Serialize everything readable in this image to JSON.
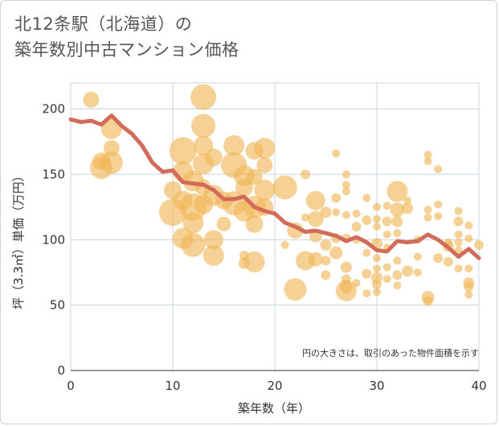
{
  "title_line1": "北12条駅（北海道）の",
  "title_line2": "築年数別中古マンション価格",
  "chart_data": {
    "type": "scatter",
    "xlabel": "築年数（年）",
    "ylabel": "坪（3.3㎡）単価（万円）",
    "xlim": [
      0,
      40
    ],
    "ylim": [
      0,
      220
    ],
    "xticks": [
      "0",
      "10",
      "20",
      "30",
      "40"
    ],
    "yticks": [
      "0",
      "50",
      "100",
      "150",
      "200"
    ],
    "note": "円の大きさは、取引のあった物件面積を示す",
    "colors": {
      "bubble": "#f0b454",
      "line": "#d36b5a",
      "grid": "#c8d4e0"
    },
    "trend": {
      "x": [
        0,
        1,
        2,
        3,
        4,
        5,
        6,
        7,
        8,
        9,
        10,
        11,
        12,
        13,
        14,
        15,
        16,
        17,
        18,
        19,
        20,
        21,
        22,
        23,
        24,
        25,
        26,
        27,
        28,
        29,
        30,
        31,
        32,
        33,
        34,
        35,
        36,
        37,
        38,
        39,
        40
      ],
      "y": [
        192,
        190,
        191,
        188,
        195,
        187,
        181,
        172,
        159,
        152,
        153,
        144,
        143,
        142,
        138,
        131,
        131,
        133,
        125,
        122,
        120,
        113,
        110,
        106,
        107,
        105,
        103,
        99,
        102,
        98,
        92,
        91,
        99,
        98,
        99,
        104,
        100,
        94,
        87,
        93,
        86
      ],
      "note_y_scale": "values in wan yen"
    },
    "points": [
      {
        "x": 2,
        "y": 207,
        "s": 10
      },
      {
        "x": 3,
        "y": 155,
        "s": 14
      },
      {
        "x": 3,
        "y": 160,
        "s": 11
      },
      {
        "x": 4,
        "y": 185,
        "s": 13
      },
      {
        "x": 4,
        "y": 170,
        "s": 10
      },
      {
        "x": 4,
        "y": 159,
        "s": 14
      },
      {
        "x": 10,
        "y": 138,
        "s": 11
      },
      {
        "x": 10,
        "y": 121,
        "s": 17
      },
      {
        "x": 11,
        "y": 168,
        "s": 17
      },
      {
        "x": 11,
        "y": 152,
        "s": 13
      },
      {
        "x": 11,
        "y": 130,
        "s": 12
      },
      {
        "x": 11,
        "y": 101,
        "s": 13
      },
      {
        "x": 12,
        "y": 145,
        "s": 13
      },
      {
        "x": 12,
        "y": 125,
        "s": 17
      },
      {
        "x": 12,
        "y": 113,
        "s": 13
      },
      {
        "x": 12,
        "y": 96,
        "s": 15
      },
      {
        "x": 13,
        "y": 209,
        "s": 16
      },
      {
        "x": 13,
        "y": 187,
        "s": 15
      },
      {
        "x": 13,
        "y": 172,
        "s": 12
      },
      {
        "x": 13,
        "y": 158,
        "s": 13
      },
      {
        "x": 13,
        "y": 140,
        "s": 10
      },
      {
        "x": 13,
        "y": 127,
        "s": 12
      },
      {
        "x": 14,
        "y": 163,
        "s": 11
      },
      {
        "x": 14,
        "y": 134,
        "s": 13
      },
      {
        "x": 14,
        "y": 100,
        "s": 12
      },
      {
        "x": 14,
        "y": 88,
        "s": 13
      },
      {
        "x": 15,
        "y": 130,
        "s": 11
      },
      {
        "x": 15,
        "y": 112,
        "s": 9
      },
      {
        "x": 16,
        "y": 172,
        "s": 13
      },
      {
        "x": 16,
        "y": 157,
        "s": 16
      },
      {
        "x": 16,
        "y": 128,
        "s": 15
      },
      {
        "x": 17,
        "y": 149,
        "s": 13
      },
      {
        "x": 17,
        "y": 140,
        "s": 11
      },
      {
        "x": 17,
        "y": 122,
        "s": 13
      },
      {
        "x": 17,
        "y": 88,
        "s": 6
      },
      {
        "x": 17,
        "y": 82,
        "s": 7
      },
      {
        "x": 18,
        "y": 168,
        "s": 11
      },
      {
        "x": 18,
        "y": 148,
        "s": 10
      },
      {
        "x": 18,
        "y": 125,
        "s": 14
      },
      {
        "x": 18,
        "y": 112,
        "s": 11
      },
      {
        "x": 18,
        "y": 83,
        "s": 13
      },
      {
        "x": 19,
        "y": 170,
        "s": 13
      },
      {
        "x": 19,
        "y": 157,
        "s": 10
      },
      {
        "x": 19,
        "y": 138,
        "s": 13
      },
      {
        "x": 19,
        "y": 125,
        "s": 11
      },
      {
        "x": 21,
        "y": 140,
        "s": 15
      },
      {
        "x": 21,
        "y": 96,
        "s": 5
      },
      {
        "x": 22,
        "y": 107,
        "s": 10
      },
      {
        "x": 22,
        "y": 62,
        "s": 14
      },
      {
        "x": 23,
        "y": 150,
        "s": 6
      },
      {
        "x": 23,
        "y": 117,
        "s": 5
      },
      {
        "x": 23,
        "y": 84,
        "s": 12
      },
      {
        "x": 24,
        "y": 130,
        "s": 12
      },
      {
        "x": 24,
        "y": 116,
        "s": 10
      },
      {
        "x": 24,
        "y": 103,
        "s": 8
      },
      {
        "x": 24,
        "y": 85,
        "s": 9
      },
      {
        "x": 25,
        "y": 121,
        "s": 7
      },
      {
        "x": 25,
        "y": 96,
        "s": 7
      },
      {
        "x": 25,
        "y": 84,
        "s": 6
      },
      {
        "x": 25,
        "y": 73,
        "s": 6
      },
      {
        "x": 26,
        "y": 166,
        "s": 5
      },
      {
        "x": 26,
        "y": 132,
        "s": 6
      },
      {
        "x": 26,
        "y": 121,
        "s": 5
      },
      {
        "x": 26,
        "y": 101,
        "s": 6
      },
      {
        "x": 26,
        "y": 90,
        "s": 8
      },
      {
        "x": 27,
        "y": 150,
        "s": 5
      },
      {
        "x": 27,
        "y": 142,
        "s": 5
      },
      {
        "x": 27,
        "y": 137,
        "s": 5
      },
      {
        "x": 27,
        "y": 119,
        "s": 5
      },
      {
        "x": 27,
        "y": 101,
        "s": 6
      },
      {
        "x": 27,
        "y": 79,
        "s": 7
      },
      {
        "x": 27,
        "y": 70,
        "s": 6
      },
      {
        "x": 27,
        "y": 64,
        "s": 8
      },
      {
        "x": 27,
        "y": 61,
        "s": 13
      },
      {
        "x": 28,
        "y": 120,
        "s": 5
      },
      {
        "x": 28,
        "y": 110,
        "s": 6
      },
      {
        "x": 28,
        "y": 100,
        "s": 5
      },
      {
        "x": 28,
        "y": 67,
        "s": 5
      },
      {
        "x": 29,
        "y": 132,
        "s": 5
      },
      {
        "x": 29,
        "y": 115,
        "s": 6
      },
      {
        "x": 29,
        "y": 90,
        "s": 5
      },
      {
        "x": 29,
        "y": 74,
        "s": 6
      },
      {
        "x": 29,
        "y": 59,
        "s": 5
      },
      {
        "x": 30,
        "y": 125,
        "s": 5
      },
      {
        "x": 30,
        "y": 116,
        "s": 5
      },
      {
        "x": 30,
        "y": 110,
        "s": 5
      },
      {
        "x": 30,
        "y": 97,
        "s": 7
      },
      {
        "x": 30,
        "y": 86,
        "s": 5
      },
      {
        "x": 30,
        "y": 78,
        "s": 5
      },
      {
        "x": 30,
        "y": 71,
        "s": 7
      },
      {
        "x": 30,
        "y": 66,
        "s": 6
      },
      {
        "x": 30,
        "y": 60,
        "s": 5
      },
      {
        "x": 31,
        "y": 126,
        "s": 5
      },
      {
        "x": 31,
        "y": 114,
        "s": 6
      },
      {
        "x": 31,
        "y": 104,
        "s": 5
      },
      {
        "x": 31,
        "y": 94,
        "s": 5
      },
      {
        "x": 31,
        "y": 79,
        "s": 5
      },
      {
        "x": 31,
        "y": 70,
        "s": 5
      },
      {
        "x": 32,
        "y": 137,
        "s": 13
      },
      {
        "x": 32,
        "y": 123,
        "s": 9
      },
      {
        "x": 32,
        "y": 114,
        "s": 7
      },
      {
        "x": 32,
        "y": 105,
        "s": 5
      },
      {
        "x": 32,
        "y": 84,
        "s": 5
      },
      {
        "x": 32,
        "y": 73,
        "s": 6
      },
      {
        "x": 32,
        "y": 65,
        "s": 5
      },
      {
        "x": 33,
        "y": 130,
        "s": 5
      },
      {
        "x": 33,
        "y": 124,
        "s": 7
      },
      {
        "x": 33,
        "y": 76,
        "s": 7
      },
      {
        "x": 34,
        "y": 100,
        "s": 5
      },
      {
        "x": 34,
        "y": 87,
        "s": 5
      },
      {
        "x": 34,
        "y": 75,
        "s": 5
      },
      {
        "x": 35,
        "y": 165,
        "s": 5
      },
      {
        "x": 35,
        "y": 160,
        "s": 5
      },
      {
        "x": 35,
        "y": 123,
        "s": 5
      },
      {
        "x": 35,
        "y": 117,
        "s": 5
      },
      {
        "x": 35,
        "y": 56,
        "s": 8
      },
      {
        "x": 35,
        "y": 53,
        "s": 6
      },
      {
        "x": 36,
        "y": 154,
        "s": 5
      },
      {
        "x": 36,
        "y": 127,
        "s": 5
      },
      {
        "x": 36,
        "y": 118,
        "s": 5
      },
      {
        "x": 36,
        "y": 86,
        "s": 6
      },
      {
        "x": 37,
        "y": 98,
        "s": 5
      },
      {
        "x": 37,
        "y": 95,
        "s": 7
      },
      {
        "x": 37,
        "y": 83,
        "s": 6
      },
      {
        "x": 38,
        "y": 122,
        "s": 5
      },
      {
        "x": 38,
        "y": 114,
        "s": 6
      },
      {
        "x": 38,
        "y": 104,
        "s": 5
      },
      {
        "x": 38,
        "y": 98,
        "s": 5
      },
      {
        "x": 38,
        "y": 92,
        "s": 5
      },
      {
        "x": 38,
        "y": 78,
        "s": 5
      },
      {
        "x": 39,
        "y": 111,
        "s": 5
      },
      {
        "x": 39,
        "y": 101,
        "s": 5
      },
      {
        "x": 39,
        "y": 78,
        "s": 5
      },
      {
        "x": 39,
        "y": 67,
        "s": 7
      },
      {
        "x": 39,
        "y": 64,
        "s": 6
      },
      {
        "x": 39,
        "y": 58,
        "s": 5
      },
      {
        "x": 40,
        "y": 96,
        "s": 6
      }
    ]
  }
}
